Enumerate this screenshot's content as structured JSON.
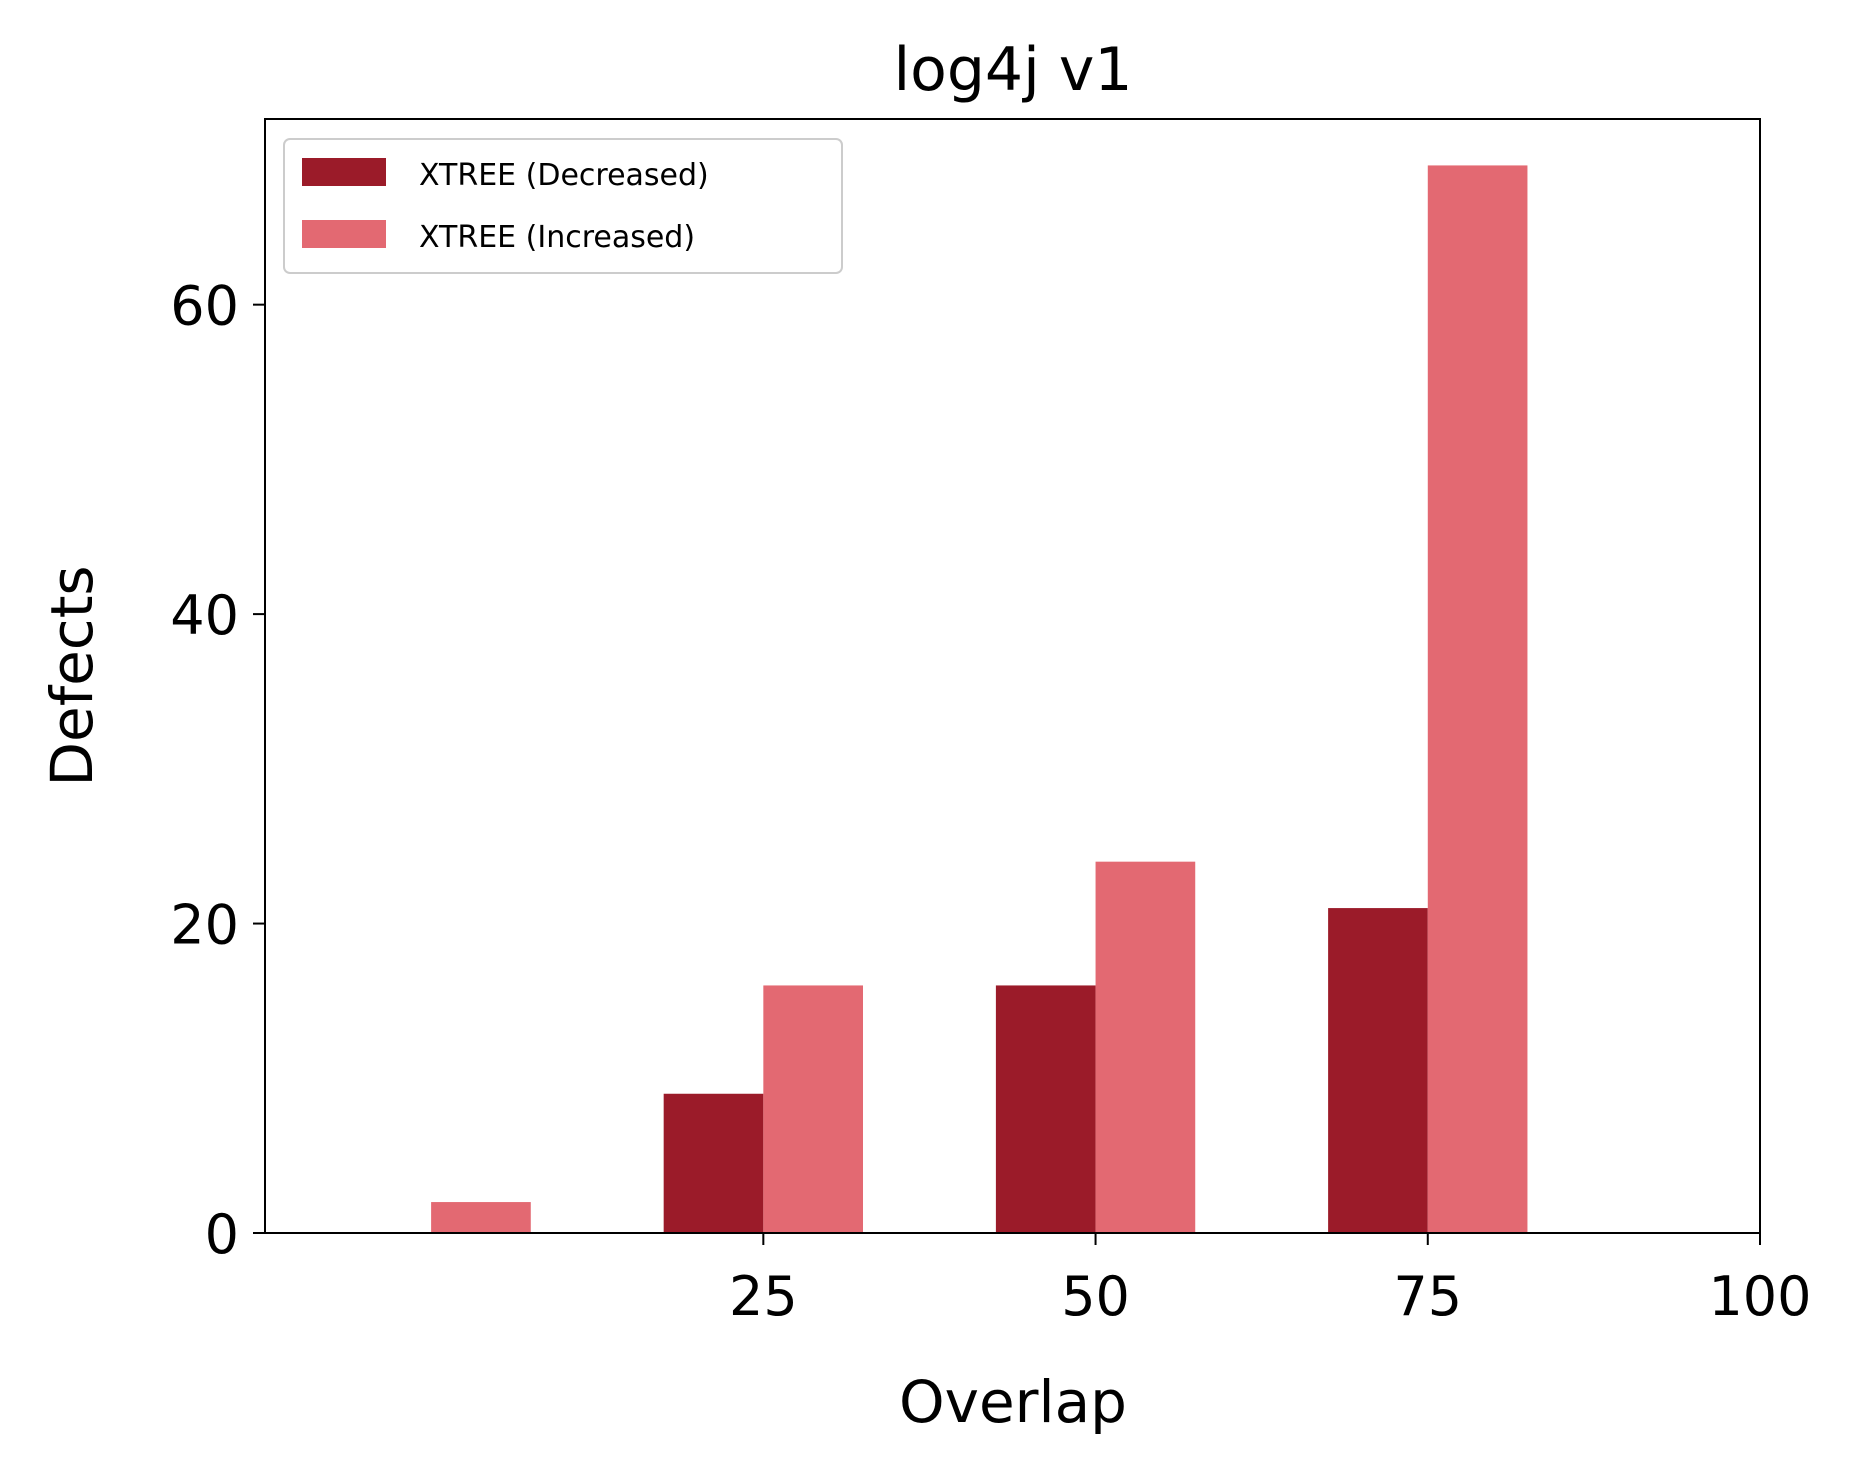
{
  "chart_data": {
    "type": "bar",
    "title": "log4j v1",
    "xlabel": "Overlap",
    "ylabel": "Defects",
    "xlim": [
      -12.5,
      100
    ],
    "ylim": [
      0,
      72
    ],
    "x_ticks": [
      25,
      50,
      75,
      100
    ],
    "y_ticks": [
      0,
      20,
      40,
      60
    ],
    "x_tick_labels": [
      "25",
      "50",
      "75",
      "100"
    ],
    "y_tick_labels": [
      "0",
      "20",
      "40",
      "60"
    ],
    "grid": false,
    "legend_position": "top-left",
    "series": [
      {
        "name": "XTREE (Decreased)",
        "color": "#9b1b29",
        "x": [
          0,
          25,
          50,
          75
        ],
        "values": [
          0,
          9,
          16,
          21
        ]
      },
      {
        "name": "XTREE (Increased)",
        "color": "#e36972",
        "x": [
          0,
          25,
          50,
          75
        ],
        "values": [
          2,
          16,
          24,
          69
        ]
      }
    ]
  }
}
